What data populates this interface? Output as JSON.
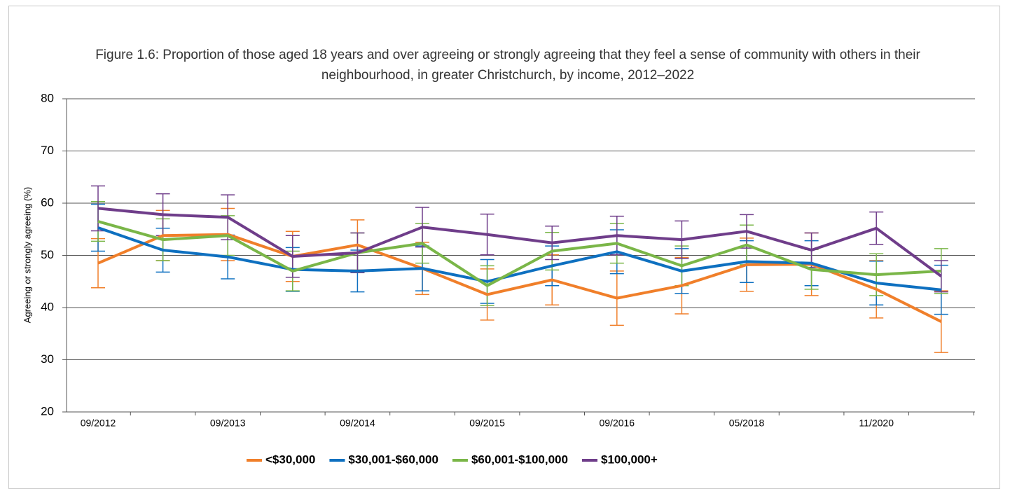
{
  "chart_data": {
    "type": "line",
    "title": "Figure 1.6: Proportion of those aged 18 years and over agreeing or strongly agreeing that they feel a sense of community with others in their neighbourhood, in greater Christchurch, by income, 2012–2022",
    "y_label": "Agreeing or strongly agreeing (%)",
    "categories": [
      "09/2012",
      null,
      "09/2013",
      null,
      "09/2014",
      null,
      "09/2015",
      null,
      "09/2016",
      null,
      "05/2018",
      null,
      "11/2020",
      null
    ],
    "ylim": [
      20,
      80
    ],
    "yticks": [
      20,
      30,
      40,
      50,
      60,
      70,
      80
    ],
    "grid": true,
    "legend": "bottom",
    "series": [
      {
        "name": "<$30,000",
        "color": "#f07f2a",
        "values": [
          48.5,
          53.8,
          54,
          49.8,
          52,
          47.5,
          42.5,
          45.3,
          41.8,
          44.2,
          48.2,
          48.3,
          43.5,
          37.3
        ],
        "errors": [
          4.7,
          4.8,
          5,
          4.8,
          4.8,
          5,
          4.9,
          4.8,
          5.2,
          5.4,
          5.1,
          6,
          5.5,
          5.9
        ]
      },
      {
        "name": "$30,001-$60,000",
        "color": "#0e70c0",
        "values": [
          55.3,
          51,
          49.7,
          47.3,
          47,
          47.5,
          45,
          48,
          50.7,
          47,
          48.8,
          48.5,
          44.7,
          43.4
        ],
        "errors": [
          4.5,
          4.2,
          4.2,
          4.2,
          4,
          4.3,
          4.2,
          3.8,
          4.2,
          4.3,
          4,
          4.3,
          4.2,
          4.7
        ]
      },
      {
        "name": "$60,001-$100,000",
        "color": "#7ab648",
        "values": [
          56.5,
          53,
          53.8,
          47,
          50.5,
          52.3,
          44.2,
          50.8,
          52.3,
          48,
          52,
          47.3,
          46.3,
          47
        ],
        "errors": [
          3.8,
          4,
          3.8,
          3.8,
          3.8,
          3.8,
          3.8,
          3.6,
          3.8,
          3.8,
          3.8,
          3.8,
          4,
          4.3
        ]
      },
      {
        "name": "$100,000+",
        "color": "#6f3d8a",
        "values": [
          59,
          57.8,
          57.3,
          49.8,
          50.5,
          55.4,
          54,
          52.4,
          53.8,
          53,
          54.6,
          51,
          55.2,
          46
        ],
        "errors": [
          4.3,
          4,
          4.3,
          4,
          3.8,
          3.8,
          3.9,
          3.2,
          3.7,
          3.6,
          3.2,
          3.3,
          3.1,
          3
        ]
      }
    ]
  }
}
